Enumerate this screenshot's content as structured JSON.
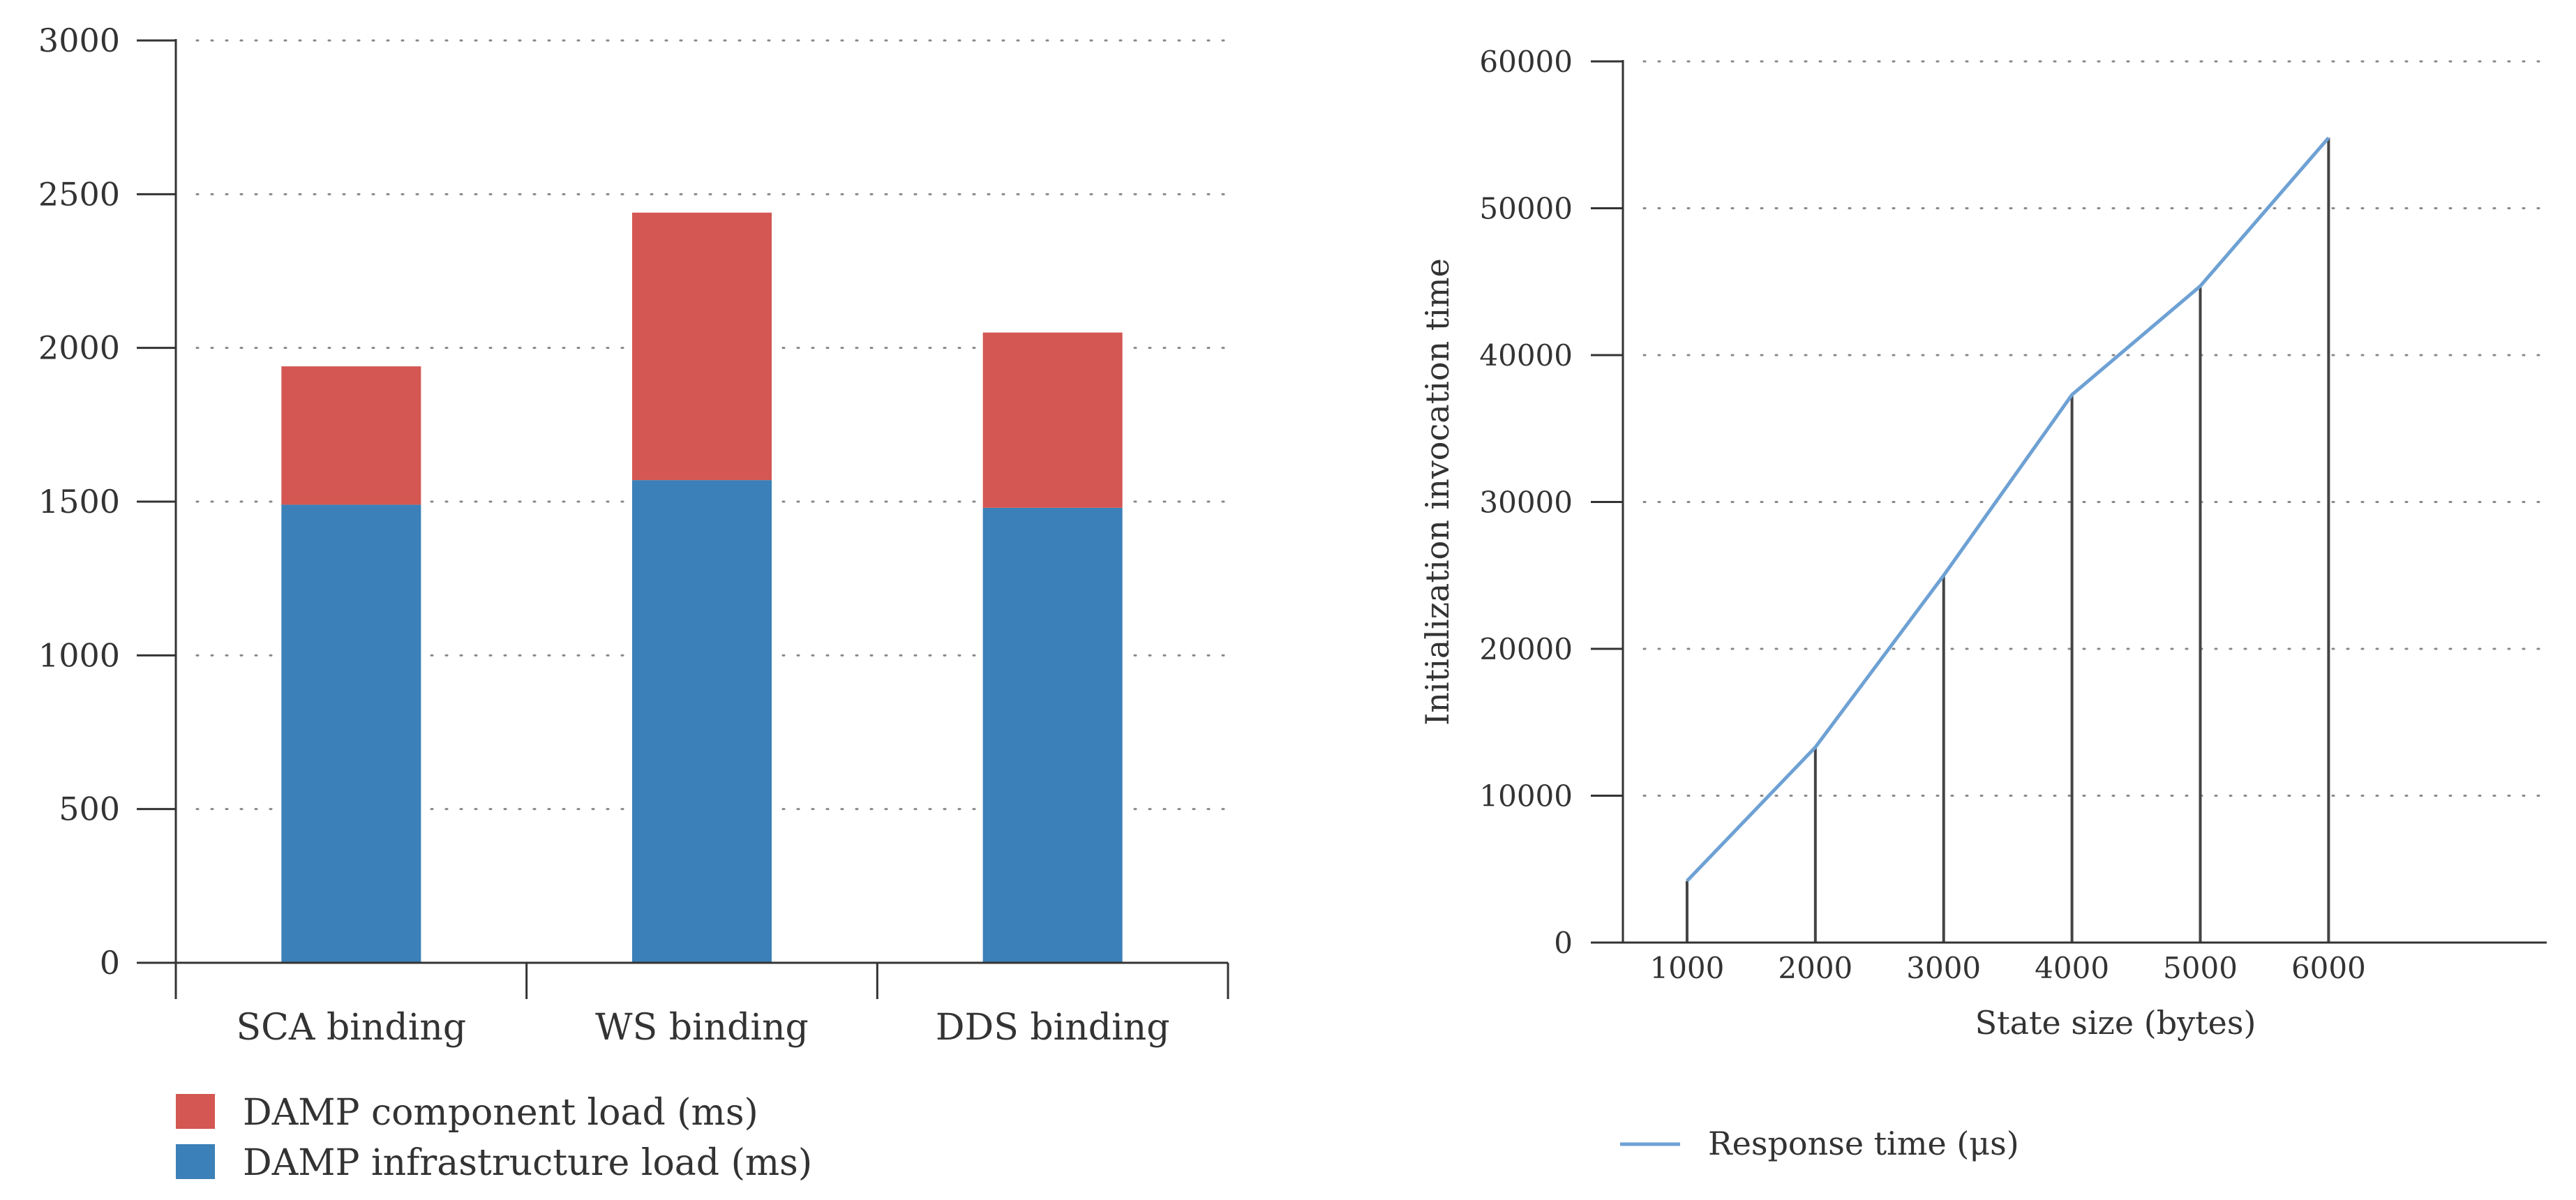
{
  "colors": {
    "component": "#d45753",
    "infrastructure": "#3b80b8",
    "response_line": "#6ea1d4",
    "axis": "#333333",
    "grid": "#888888",
    "drop_line": "#444444"
  },
  "chart_data": [
    {
      "type": "bar",
      "stacked": true,
      "title": "",
      "xlabel": "",
      "ylabel": "",
      "ylim": [
        0,
        3000
      ],
      "yticks": [
        0,
        500,
        1000,
        1500,
        2000,
        2500,
        3000
      ],
      "ytick_labels": [
        "0",
        "500",
        "1000",
        "1500",
        "2000",
        "2500",
        "3000"
      ],
      "grid": "horizontal dotted",
      "categories": [
        "SCA binding",
        "WS binding",
        "DDS binding"
      ],
      "series": [
        {
          "name": "DAMP infrastructure load (ms)",
          "color": "#3b80b8",
          "values": [
            1490,
            1570,
            1480
          ]
        },
        {
          "name": "DAMP component load (ms)",
          "color": "#d45753",
          "values": [
            450,
            870,
            570
          ]
        }
      ],
      "legend": {
        "placement": "bottom-left",
        "entries": [
          "DAMP component load (ms)",
          "DAMP infrastructure load (ms)"
        ]
      }
    },
    {
      "type": "line",
      "title": "",
      "xlabel": "State size (bytes)",
      "ylabel": "Initialization invocation time",
      "x": [
        1000,
        2000,
        3000,
        4000,
        5000,
        6000
      ],
      "xtick_labels": [
        "1000",
        "2000",
        "3000",
        "4000",
        "5000",
        "6000"
      ],
      "xlim": [
        500,
        7700
      ],
      "ylim": [
        0,
        60000
      ],
      "yticks": [
        0,
        10000,
        20000,
        30000,
        40000,
        50000,
        60000
      ],
      "ytick_labels": [
        "0",
        "10000",
        "20000",
        "30000",
        "40000",
        "50000",
        "60000"
      ],
      "grid": "horizontal dotted",
      "drop_lines": true,
      "series": [
        {
          "name": "Response time (μs)",
          "color": "#6ea1d4",
          "values": [
            4200,
            13300,
            25000,
            37300,
            44700,
            54800
          ]
        }
      ],
      "legend": {
        "placement": "bottom-left",
        "entries": [
          "Response time (μs)"
        ]
      }
    }
  ]
}
